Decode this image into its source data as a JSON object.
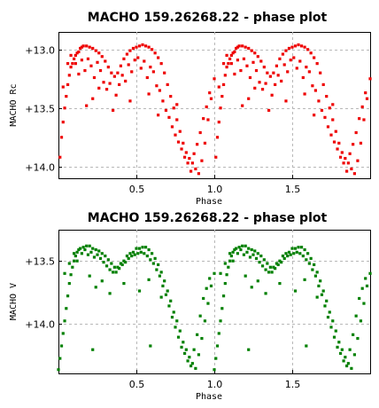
{
  "chart_data": [
    {
      "type": "scatter",
      "title": "MACHO 159.26268.22 - phase plot",
      "xlabel": "Phase",
      "ylabel": "MACHO Rc",
      "xlim": [
        0.0,
        2.0
      ],
      "ylim": [
        14.1,
        12.85
      ],
      "y_inverted": true,
      "xticks": [
        0.5,
        1.0,
        1.5
      ],
      "xtick_labels": [
        "0.5",
        "1.0",
        "1.5"
      ],
      "yticks": [
        13.0,
        13.5,
        14.0
      ],
      "ytick_labels": [
        "+13.0",
        "+13.5",
        "+14.0"
      ],
      "grid": true,
      "marker_color": "#ee0000",
      "series": [
        {
          "points": [
            [
              0.01,
              13.92
            ],
            [
              0.02,
              13.75
            ],
            [
              0.03,
              13.62
            ],
            [
              0.04,
              13.5
            ],
            [
              0.05,
              13.4
            ],
            [
              0.06,
              13.3
            ],
            [
              0.07,
              13.22
            ],
            [
              0.08,
              13.15
            ],
            [
              0.09,
              13.12
            ],
            [
              0.1,
              13.08
            ],
            [
              0.11,
              13.05
            ],
            [
              0.12,
              13.03
            ],
            [
              0.13,
              13.02
            ],
            [
              0.14,
              12.99
            ],
            [
              0.15,
              12.98
            ],
            [
              0.16,
              12.97
            ],
            [
              0.18,
              12.97
            ],
            [
              0.2,
              12.98
            ],
            [
              0.22,
              12.99
            ],
            [
              0.24,
              13.01
            ],
            [
              0.26,
              13.03
            ],
            [
              0.28,
              13.06
            ],
            [
              0.3,
              13.1
            ],
            [
              0.32,
              13.15
            ],
            [
              0.34,
              13.2
            ],
            [
              0.36,
              13.23
            ],
            [
              0.38,
              13.2
            ],
            [
              0.4,
              13.14
            ],
            [
              0.42,
              13.08
            ],
            [
              0.44,
              13.04
            ],
            [
              0.46,
              13.01
            ],
            [
              0.48,
              12.99
            ],
            [
              0.5,
              12.98
            ],
            [
              0.52,
              12.97
            ],
            [
              0.54,
              12.96
            ],
            [
              0.56,
              12.97
            ],
            [
              0.58,
              12.98
            ],
            [
              0.6,
              13.0
            ],
            [
              0.62,
              13.03
            ],
            [
              0.64,
              13.07
            ],
            [
              0.66,
              13.12
            ],
            [
              0.68,
              13.2
            ],
            [
              0.7,
              13.3
            ],
            [
              0.72,
              13.4
            ],
            [
              0.74,
              13.5
            ],
            [
              0.76,
              13.6
            ],
            [
              0.78,
              13.7
            ],
            [
              0.8,
              13.8
            ],
            [
              0.82,
              13.88
            ],
            [
              0.84,
              13.93
            ],
            [
              0.86,
              13.97
            ],
            [
              0.88,
              14.02
            ],
            [
              0.9,
              14.06
            ],
            [
              0.92,
              13.95
            ],
            [
              0.94,
              13.8
            ],
            [
              0.96,
              13.6
            ],
            [
              0.98,
              13.42
            ],
            [
              1.0,
              13.25
            ],
            [
              0.03,
              13.32
            ],
            [
              0.06,
              13.12
            ],
            [
              0.08,
              13.05
            ],
            [
              0.11,
              13.12
            ],
            [
              0.13,
              13.21
            ],
            [
              0.15,
              13.09
            ],
            [
              0.17,
              13.18
            ],
            [
              0.19,
              13.08
            ],
            [
              0.21,
              13.14
            ],
            [
              0.23,
              13.24
            ],
            [
              0.25,
              13.11
            ],
            [
              0.27,
              13.18
            ],
            [
              0.29,
              13.28
            ],
            [
              0.31,
              13.34
            ],
            [
              0.33,
              13.29
            ],
            [
              0.37,
              13.39
            ],
            [
              0.39,
              13.3
            ],
            [
              0.41,
              13.22
            ],
            [
              0.43,
              13.27
            ],
            [
              0.45,
              13.13
            ],
            [
              0.47,
              13.19
            ],
            [
              0.49,
              13.09
            ],
            [
              0.51,
              13.07
            ],
            [
              0.53,
              13.16
            ],
            [
              0.55,
              13.1
            ],
            [
              0.57,
              13.24
            ],
            [
              0.59,
              13.15
            ],
            [
              0.61,
              13.19
            ],
            [
              0.63,
              13.31
            ],
            [
              0.65,
              13.35
            ],
            [
              0.67,
              13.44
            ],
            [
              0.69,
              13.52
            ],
            [
              0.71,
              13.58
            ],
            [
              0.73,
              13.66
            ],
            [
              0.75,
              13.73
            ],
            [
              0.77,
              13.79
            ],
            [
              0.79,
              13.85
            ],
            [
              0.81,
              13.92
            ],
            [
              0.83,
              13.97
            ],
            [
              0.85,
              14.04
            ],
            [
              0.87,
              13.89
            ],
            [
              0.89,
              13.81
            ],
            [
              0.91,
              13.71
            ],
            [
              0.93,
              13.59
            ],
            [
              0.95,
              13.49
            ],
            [
              0.97,
              13.37
            ],
            [
              0.18,
              13.48
            ],
            [
              0.22,
              13.42
            ],
            [
              0.26,
              13.33
            ],
            [
              0.35,
              13.52
            ],
            [
              0.46,
              13.44
            ],
            [
              0.58,
              13.38
            ],
            [
              0.64,
              13.56
            ],
            [
              0.76,
              13.47
            ]
          ]
        }
      ]
    },
    {
      "type": "scatter",
      "title": "MACHO 159.26268.22 - phase plot",
      "xlabel": "Phase",
      "ylabel": "MACHO V",
      "xlim": [
        0.0,
        2.0
      ],
      "ylim": [
        14.4,
        13.25
      ],
      "y_inverted": true,
      "xticks": [
        0.5,
        1.0,
        1.5
      ],
      "xtick_labels": [
        "0.5",
        "1.0",
        "1.5"
      ],
      "yticks": [
        13.5,
        14.0
      ],
      "ytick_labels": [
        "+13.5",
        "+14.0"
      ],
      "grid": true,
      "marker_color": "#008000",
      "series": [
        {
          "points": [
            [
              0.0,
              14.37
            ],
            [
              0.01,
              14.28
            ],
            [
              0.02,
              14.18
            ],
            [
              0.03,
              14.08
            ],
            [
              0.04,
              13.98
            ],
            [
              0.05,
              13.88
            ],
            [
              0.06,
              13.78
            ],
            [
              0.07,
              13.68
            ],
            [
              0.08,
              13.61
            ],
            [
              0.09,
              13.55
            ],
            [
              0.1,
              13.5
            ],
            [
              0.11,
              13.46
            ],
            [
              0.12,
              13.43
            ],
            [
              0.13,
              13.41
            ],
            [
              0.14,
              13.4
            ],
            [
              0.16,
              13.39
            ],
            [
              0.18,
              13.38
            ],
            [
              0.2,
              13.38
            ],
            [
              0.22,
              13.4
            ],
            [
              0.24,
              13.41
            ],
            [
              0.26,
              13.42
            ],
            [
              0.28,
              13.44
            ],
            [
              0.3,
              13.46
            ],
            [
              0.32,
              13.49
            ],
            [
              0.34,
              13.52
            ],
            [
              0.36,
              13.55
            ],
            [
              0.38,
              13.55
            ],
            [
              0.4,
              13.52
            ],
            [
              0.42,
              13.5
            ],
            [
              0.44,
              13.46
            ],
            [
              0.46,
              13.44
            ],
            [
              0.48,
              13.43
            ],
            [
              0.5,
              13.4
            ],
            [
              0.52,
              13.4
            ],
            [
              0.54,
              13.39
            ],
            [
              0.56,
              13.39
            ],
            [
              0.58,
              13.41
            ],
            [
              0.6,
              13.44
            ],
            [
              0.62,
              13.48
            ],
            [
              0.64,
              13.53
            ],
            [
              0.66,
              13.59
            ],
            [
              0.68,
              13.66
            ],
            [
              0.7,
              13.74
            ],
            [
              0.72,
              13.82
            ],
            [
              0.74,
              13.91
            ],
            [
              0.76,
              13.98
            ],
            [
              0.78,
              14.06
            ],
            [
              0.8,
              14.15
            ],
            [
              0.82,
              14.21
            ],
            [
              0.84,
              14.27
            ],
            [
              0.86,
              14.32
            ],
            [
              0.88,
              14.36
            ],
            [
              0.9,
              14.25
            ],
            [
              0.92,
              14.12
            ],
            [
              0.94,
              13.98
            ],
            [
              0.96,
              13.84
            ],
            [
              0.98,
              13.7
            ],
            [
              1.0,
              13.6
            ],
            [
              0.04,
              13.6
            ],
            [
              0.07,
              13.52
            ],
            [
              0.1,
              13.44
            ],
            [
              0.12,
              13.5
            ],
            [
              0.15,
              13.44
            ],
            [
              0.17,
              13.41
            ],
            [
              0.19,
              13.45
            ],
            [
              0.21,
              13.43
            ],
            [
              0.23,
              13.47
            ],
            [
              0.25,
              13.45
            ],
            [
              0.27,
              13.48
            ],
            [
              0.29,
              13.51
            ],
            [
              0.31,
              13.54
            ],
            [
              0.33,
              13.57
            ],
            [
              0.35,
              13.59
            ],
            [
              0.37,
              13.59
            ],
            [
              0.39,
              13.56
            ],
            [
              0.41,
              13.53
            ],
            [
              0.43,
              13.51
            ],
            [
              0.45,
              13.48
            ],
            [
              0.47,
              13.46
            ],
            [
              0.49,
              13.45
            ],
            [
              0.51,
              13.44
            ],
            [
              0.53,
              13.43
            ],
            [
              0.55,
              13.44
            ],
            [
              0.57,
              13.46
            ],
            [
              0.59,
              13.49
            ],
            [
              0.61,
              13.52
            ],
            [
              0.63,
              13.57
            ],
            [
              0.65,
              13.62
            ],
            [
              0.67,
              13.7
            ],
            [
              0.69,
              13.77
            ],
            [
              0.71,
              13.86
            ],
            [
              0.73,
              13.95
            ],
            [
              0.75,
              14.03
            ],
            [
              0.77,
              14.11
            ],
            [
              0.79,
              14.19
            ],
            [
              0.81,
              14.24
            ],
            [
              0.83,
              14.3
            ],
            [
              0.85,
              14.34
            ],
            [
              0.87,
              14.21
            ],
            [
              0.89,
              14.09
            ],
            [
              0.91,
              13.94
            ],
            [
              0.93,
              13.8
            ],
            [
              0.95,
              13.72
            ],
            [
              0.97,
              13.64
            ],
            [
              0.2,
              13.62
            ],
            [
              0.24,
              13.71
            ],
            [
              0.28,
              13.66
            ],
            [
              0.33,
              13.76
            ],
            [
              0.42,
              13.68
            ],
            [
              0.52,
              13.74
            ],
            [
              0.58,
              13.65
            ],
            [
              0.66,
              13.79
            ],
            [
              0.22,
              14.21
            ],
            [
              0.59,
              14.18
            ]
          ]
        }
      ]
    }
  ]
}
